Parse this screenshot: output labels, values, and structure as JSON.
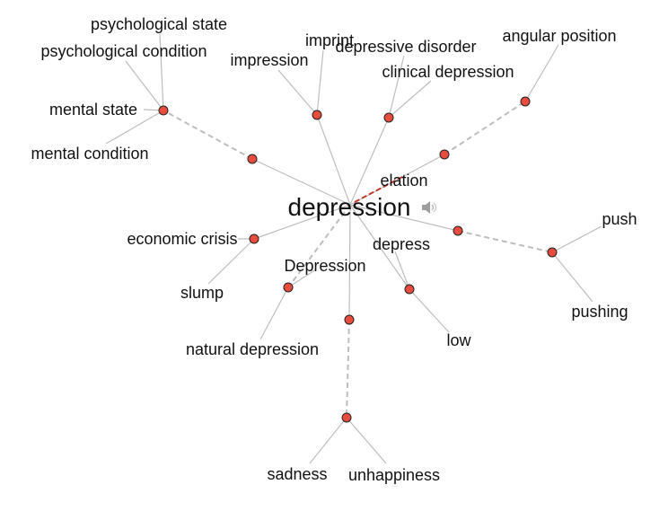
{
  "graph": {
    "center": {
      "label": "depression"
    },
    "colors": {
      "node_fill": "#e74c3c",
      "edge": "#bdbdbd",
      "antonym_edge": "#c0392b"
    },
    "icons": {
      "speaker": "speaker-icon"
    },
    "labels": {
      "psychological_state": "psychological state",
      "psychological_condition": "psychological condition",
      "mental_state": "mental state",
      "mental_condition": "mental condition",
      "impression": "impression",
      "imprint": "imprint",
      "depressive_disorder": "depressive disorder",
      "clinical_depression": "clinical depression",
      "angular_position": "angular position",
      "elation": "elation",
      "economic_crisis": "economic crisis",
      "slump": "slump",
      "depression_cap": "Depression",
      "natural_depression": "natural depression",
      "depress": "depress",
      "low": "low",
      "push": "push",
      "pushing": "pushing",
      "sadness": "sadness",
      "unhappiness": "unhappiness"
    }
  }
}
